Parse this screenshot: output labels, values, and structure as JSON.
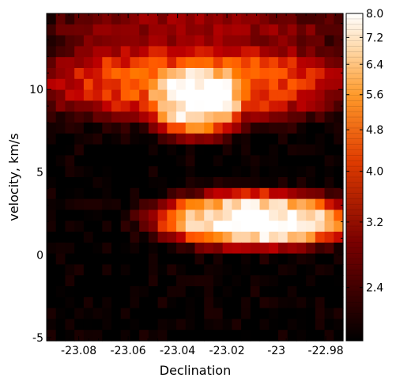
{
  "chart_data": {
    "type": "heatmap",
    "title": "",
    "xlabel": "Declination",
    "ylabel": "velocity, km/s",
    "x_range": [
      -23.093,
      -22.973
    ],
    "y_range": [
      -5.2,
      14.6
    ],
    "x_ticks": [
      -23.08,
      -23.06,
      -23.04,
      -23.02,
      -23.0,
      -22.98
    ],
    "x_tick_labels": [
      "-23.08",
      "-23.06",
      "-23.04",
      "-23.02",
      "-23",
      "-22.98"
    ],
    "y_ticks": [
      -5,
      0,
      5,
      10
    ],
    "y_tick_labels": [
      "-5",
      "0",
      "5",
      "10"
    ],
    "colorbar": {
      "scale": "log",
      "range": [
        1.9,
        8.0
      ],
      "ticks": [
        2.4,
        3.2,
        4.0,
        4.8,
        5.6,
        6.4,
        7.2,
        8.0
      ],
      "tick_labels": [
        "2.4",
        "3.2",
        "4.0",
        "4.8",
        "5.6",
        "6.4",
        "7.2",
        "8.0"
      ],
      "colormap": "gist_heat"
    },
    "grid": false,
    "features": [
      {
        "declination_range": [
          -23.049,
          -23.015
        ],
        "velocity_range": [
          7.8,
          11.5
        ],
        "peak_value": 8.0
      },
      {
        "declination_range": [
          -23.043,
          -22.973
        ],
        "velocity_range": [
          1.0,
          3.2
        ],
        "peak_value": 8.0
      },
      {
        "declination_range": [
          -23.093,
          -22.973
        ],
        "velocity_range": [
          8.5,
          12.5
        ],
        "peak_value": 5.0
      },
      {
        "declination_range": [
          -23.093,
          -22.973
        ],
        "velocity_range": [
          12.5,
          14.6
        ],
        "peak_value": 3.3
      }
    ]
  }
}
